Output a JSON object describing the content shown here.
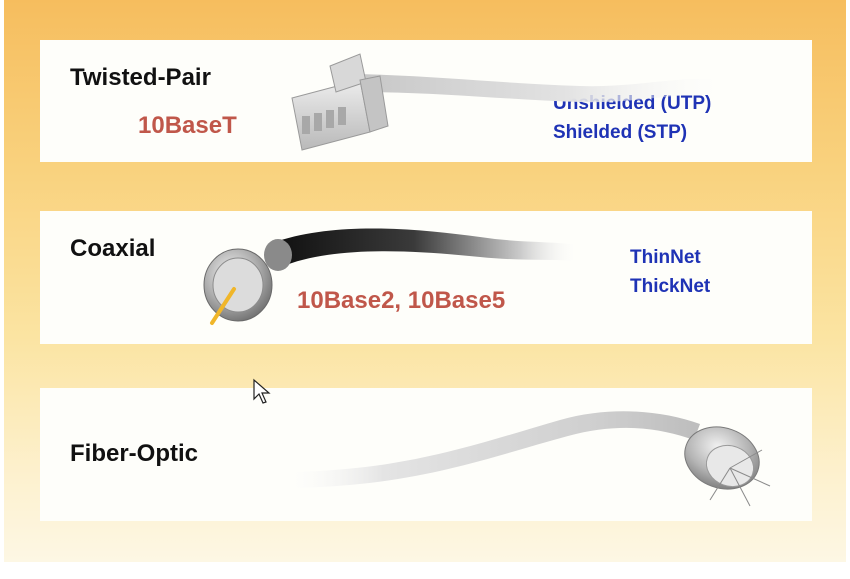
{
  "rows": [
    {
      "name": "Twisted-Pair",
      "standards": "10BaseT",
      "types": [
        "Unshielded (UTP)",
        "Shielded (STP)"
      ]
    },
    {
      "name": "Coaxial",
      "standards": "10Base2, 10Base5",
      "types": [
        "ThinNet",
        "ThickNet"
      ]
    },
    {
      "name": "Fiber-Optic"
    }
  ],
  "colors": {
    "background_top": "#f6bd5e",
    "background_bottom": "#fdf7e4",
    "panel": "#fefefa",
    "label_text": "#111111",
    "standard_text": "#c0574a",
    "type_text": "#1f33b5"
  },
  "icons": [
    "rj45-connector-icon",
    "coaxial-connector-icon",
    "fiber-optic-connector-icon",
    "mouse-cursor-icon"
  ]
}
